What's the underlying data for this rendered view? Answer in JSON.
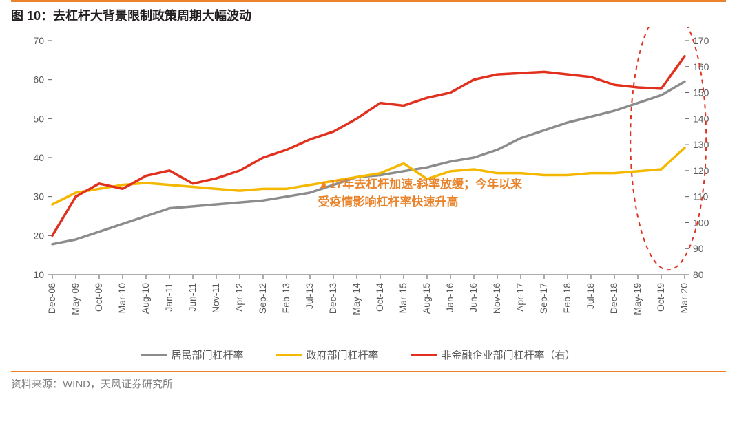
{
  "title": "图 10：去杠杆大背景限制政策周期大幅波动",
  "footer": "资料来源：WIND，天风证券研究所",
  "chart": {
    "type": "line",
    "background_color": "#ffffff",
    "title_fontsize": 18,
    "label_fontsize": 14,
    "left_axis": {
      "ylim": [
        10,
        70
      ],
      "ticks": [
        10,
        20,
        30,
        40,
        50,
        60,
        70
      ],
      "color": "#595959"
    },
    "right_axis": {
      "ylim": [
        80,
        170
      ],
      "ticks": [
        80,
        90,
        100,
        110,
        120,
        130,
        140,
        150,
        160,
        170
      ],
      "color": "#595959"
    },
    "x_categories": [
      "Dec-08",
      "May-09",
      "Oct-09",
      "Mar-10",
      "Aug-10",
      "Jan-11",
      "Jun-11",
      "Nov-11",
      "Apr-12",
      "Sep-12",
      "Feb-13",
      "Jul-13",
      "Dec-13",
      "May-14",
      "Oct-14",
      "Mar-15",
      "Aug-15",
      "Jan-16",
      "Jun-16",
      "Nov-16",
      "Apr-17",
      "Sep-17",
      "Feb-18",
      "Jul-18",
      "Dec-18",
      "May-19",
      "Oct-19",
      "Mar-20"
    ],
    "series": [
      {
        "name": "居民部门杠杆率",
        "axis": "left",
        "color": "#8c8c8c",
        "line_width": 3.5,
        "values": [
          17.8,
          19,
          21,
          23,
          25,
          27,
          27.5,
          28,
          28.5,
          29,
          30,
          31,
          33,
          35,
          35.5,
          36.5,
          37.5,
          39,
          40,
          42,
          45,
          47,
          49,
          50.5,
          52,
          54,
          56,
          59.5
        ]
      },
      {
        "name": "政府部门杠杆率",
        "axis": "left",
        "color": "#f5b800",
        "line_width": 3.5,
        "values": [
          28,
          31,
          32,
          33,
          33.5,
          33,
          32.5,
          32,
          31.5,
          32,
          32,
          33,
          34,
          35,
          36,
          38.5,
          34.5,
          36.5,
          37,
          36,
          36,
          35.5,
          35.5,
          36,
          36,
          36.5,
          37,
          42.5
        ]
      },
      {
        "name": "非金融企业部门杠杆率（右）",
        "axis": "right",
        "color": "#e1301e",
        "line_width": 3.5,
        "values": [
          95,
          110,
          115,
          113,
          118,
          120,
          115,
          117,
          120,
          125,
          128,
          132,
          135,
          140,
          146,
          145,
          148,
          150,
          155,
          157,
          157.5,
          158,
          157,
          156,
          153,
          152,
          151.5,
          164
        ]
      }
    ],
    "legend": {
      "position": "bottom",
      "items": [
        "居民部门杠杆率",
        "政府部门杠杆率",
        "非金融企业部门杠杆率（右）"
      ],
      "colors": [
        "#8c8c8c",
        "#f5b800",
        "#e1301e"
      ],
      "fontsize": 15
    },
    "annotation": {
      "lines": [
        "▲17年去杠杆加速-斜率放缓；今年以来",
        "受疫情影响杠杆率快速升高"
      ],
      "color": "#e9842c",
      "fontsize": 17
    },
    "highlight_ellipse": {
      "stroke": "#e1301e",
      "dash": "6,6",
      "line_width": 2
    },
    "tick_mark_color": "#595959",
    "border_color": "#595959"
  }
}
